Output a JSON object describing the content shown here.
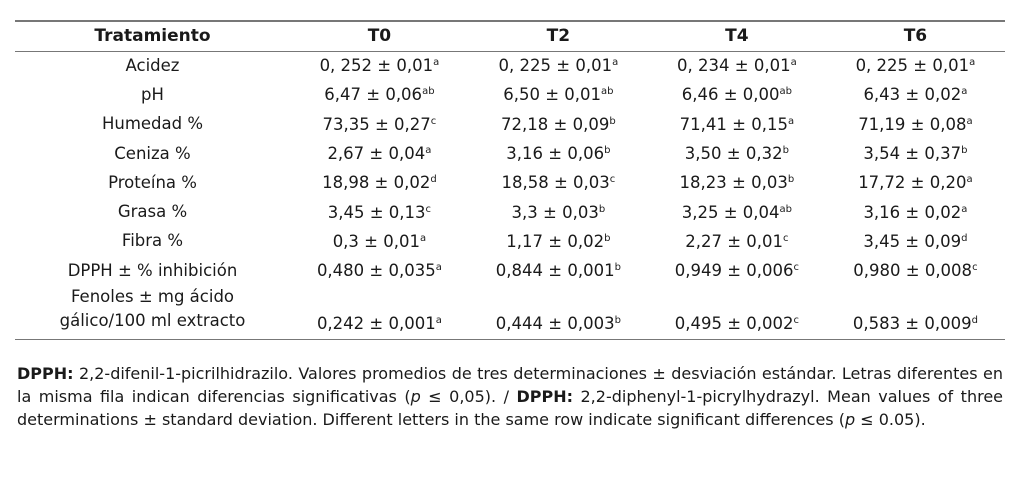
{
  "table": {
    "headers": [
      "Tratamiento",
      "T0",
      "T2",
      "T4",
      "T6"
    ],
    "rows": [
      {
        "label": "Acidez",
        "cells": [
          [
            "0, 252 ± 0,01",
            "a"
          ],
          [
            "0, 225 ± 0,01",
            "a"
          ],
          [
            "0, 234 ± 0,01",
            "a"
          ],
          [
            "0, 225 ± 0,01",
            "a"
          ]
        ]
      },
      {
        "label": "pH",
        "cells": [
          [
            "6,47 ± 0,06",
            "ab"
          ],
          [
            "6,50 ± 0,01",
            "ab"
          ],
          [
            "6,46 ± 0,00",
            "ab"
          ],
          [
            "6,43 ± 0,02",
            "a"
          ]
        ]
      },
      {
        "label": "Humedad %",
        "cells": [
          [
            "73,35 ± 0,27",
            "c"
          ],
          [
            "72,18 ± 0,09",
            "b"
          ],
          [
            "71,41 ± 0,15",
            "a"
          ],
          [
            "71,19 ± 0,08",
            "a"
          ]
        ]
      },
      {
        "label": "Ceniza %",
        "cells": [
          [
            "2,67 ± 0,04",
            "a"
          ],
          [
            "3,16 ± 0,06",
            "b"
          ],
          [
            "3,50 ± 0,32",
            "b"
          ],
          [
            "3,54 ± 0,37",
            "b"
          ]
        ]
      },
      {
        "label": "Proteína %",
        "cells": [
          [
            "18,98 ± 0,02",
            "d"
          ],
          [
            "18,58 ± 0,03",
            "c"
          ],
          [
            "18,23 ± 0,03",
            "b"
          ],
          [
            "17,72 ± 0,20",
            "a"
          ]
        ]
      },
      {
        "label": "Grasa %",
        "cells": [
          [
            "3,45 ± 0,13",
            "c"
          ],
          [
            "3,3 ± 0,03",
            "b"
          ],
          [
            "3,25 ± 0,04",
            "ab"
          ],
          [
            "3,16 ± 0,02",
            "a"
          ]
        ]
      },
      {
        "label": "Fibra %",
        "cells": [
          [
            "0,3 ± 0,01",
            "a"
          ],
          [
            "1,17 ± 0,02",
            "b"
          ],
          [
            "2,27 ± 0,01",
            "c"
          ],
          [
            "3,45 ± 0,09",
            "d"
          ]
        ]
      },
      {
        "label": "DPPH ± % inhibición",
        "cells": [
          [
            "0,480 ± 0,035",
            "a"
          ],
          [
            "0,844 ± 0,001",
            "b"
          ],
          [
            "0,949 ± 0,006",
            "c"
          ],
          [
            "0,980 ± 0,008",
            "c"
          ]
        ]
      },
      {
        "label": "Fenoles ± mg ácido gálico/100 ml extracto",
        "label_lines": [
          "Fenoles ± mg ácido",
          "gálico/100 ml extracto"
        ],
        "cells": [
          [
            "0,242 ± 0,001",
            "a"
          ],
          [
            "0,444 ± 0,003",
            "b"
          ],
          [
            "0,495 ± 0,002",
            "c"
          ],
          [
            "0,583 ± 0,009",
            "d"
          ]
        ]
      }
    ]
  },
  "footnote": {
    "b1": "DPPH:",
    "t1": " 2,2-difenil-1-picrilhidrazilo. Valores promedios de tres determinaciones ± desviación estándar. Letras diferentes en la misma fila indican diferencias significativas (",
    "p1": "p",
    "t2": " ≤ 0,05). / ",
    "b2": "DPPH:",
    "t3": " 2,2-diphenyl-1-picrylhydrazyl. Mean values of three determinations ± standard deviation. Different letters in the same row indicate significant differences (",
    "p2": "p",
    "t4": " ≤ 0.05)."
  }
}
